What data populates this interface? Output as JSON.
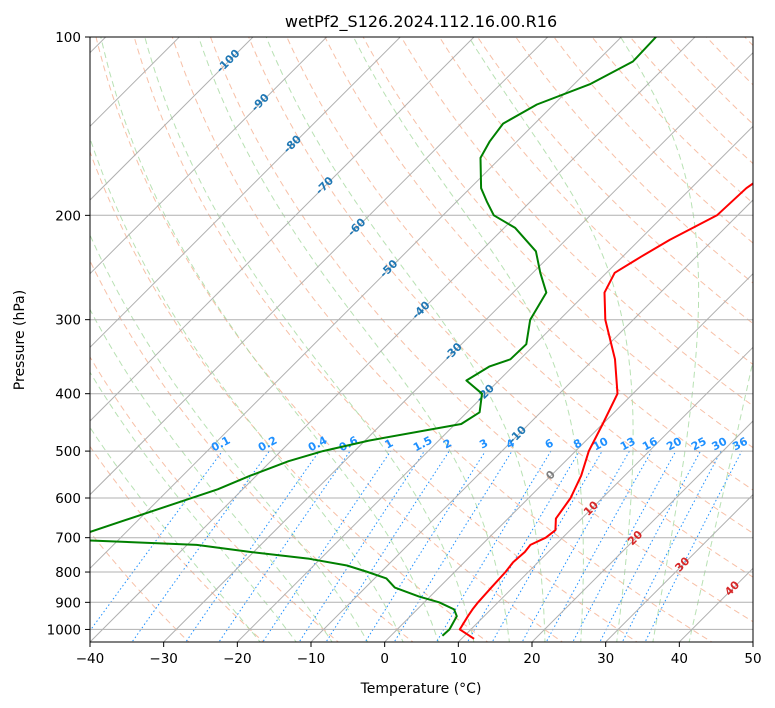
{
  "chart_data": {
    "type": "skew-t log-p",
    "title": "wetPf2_S126.2024.112.16.00.R16",
    "xlabel": "Temperature (°C)",
    "ylabel": "Pressure (hPa)",
    "xlim": [
      -40,
      50
    ],
    "ylim": [
      1050,
      100
    ],
    "y_scale": "log",
    "grid": true,
    "x_ticks": [
      -40,
      -30,
      -20,
      -10,
      0,
      10,
      20,
      30,
      40,
      50
    ],
    "x_tick_labels": [
      "−40",
      "−30",
      "−20",
      "−10",
      "0",
      "10",
      "20",
      "30",
      "40",
      "50"
    ],
    "y_ticks": [
      1000,
      900,
      800,
      700,
      600,
      500,
      400,
      300,
      200,
      100
    ],
    "y_tick_labels": [
      "1000",
      "900",
      "800",
      "700",
      "600",
      "500",
      "400",
      "300",
      "200",
      "100"
    ],
    "series": [
      {
        "color": "#ff0000",
        "p": [
          1037,
          1000,
          950,
          925,
          900,
          850,
          800,
          770,
          740,
          720,
          700,
          680,
          650,
          600,
          550,
          500,
          450,
          400,
          350,
          300,
          270,
          250,
          235,
          220,
          200,
          180,
          160,
          140,
          120,
          100
        ],
        "t": [
          11.7,
          8.5,
          7.8,
          7.5,
          7.3,
          7.1,
          6.9,
          6.6,
          6.8,
          6.6,
          7.7,
          8.0,
          6.5,
          5.7,
          4.1,
          1.8,
          0.0,
          -2.1,
          -7.1,
          -13.8,
          -17.6,
          -18.9,
          -17.5,
          -15.9,
          -12.8,
          -12.5,
          -10.8,
          -7.9,
          -7.4,
          -5.4
        ]
      },
      {
        "color": "#008000",
        "p": [
          1025,
          1000,
          950,
          925,
          900,
          880,
          850,
          820,
          800,
          780,
          760,
          740,
          720,
          705,
          580,
          550,
          520,
          500,
          480,
          450,
          430,
          400,
          380,
          360,
          350,
          330,
          300,
          270,
          250,
          230,
          210,
          200,
          190,
          180,
          160,
          150,
          140,
          130,
          120,
          110,
          100
        ],
        "t": [
          7.0,
          7.1,
          6.3,
          5.0,
          2.0,
          -1.5,
          -6.0,
          -8.4,
          -11.8,
          -15.5,
          -21.5,
          -30.4,
          -38.7,
          -57.0,
          -43.4,
          -40.8,
          -37.6,
          -34.3,
          -29.5,
          -19.2,
          -18.3,
          -20.5,
          -24.4,
          -23.2,
          -21.3,
          -21.2,
          -24.0,
          -25.5,
          -29.0,
          -32.5,
          -38.5,
          -43.1,
          -45.8,
          -48.5,
          -52.7,
          -53.7,
          -54.3,
          -52.3,
          -47.8,
          -45.1,
          -45.3
        ]
      }
    ],
    "mixing_ratio_labels": [
      "0.1",
      "0.2",
      "0.4",
      "0.6",
      "1",
      "1.5",
      "2",
      "3",
      "4",
      "6",
      "8",
      "10",
      "13",
      "16",
      "20",
      "25",
      "30",
      "36"
    ],
    "isotherm_labels": [
      "-100",
      "-90",
      "-80",
      "-70",
      "-60",
      "-50",
      "-40",
      "-30",
      "-20",
      "-10",
      "0",
      "10",
      "20",
      "30",
      "40"
    ],
    "colors": {
      "temperature": "#ff0000",
      "dewpoint": "#008000",
      "isotherm_label_cold": "#1f77b4",
      "isotherm_label_zero": "#808080",
      "isotherm_label_warm": "#d62728",
      "mixing_ratio": "#1e90ff",
      "dry_adiabat": "#f4a582",
      "moist_adiabat": "#a6d9a0",
      "grid": "#b0b0b0"
    }
  }
}
